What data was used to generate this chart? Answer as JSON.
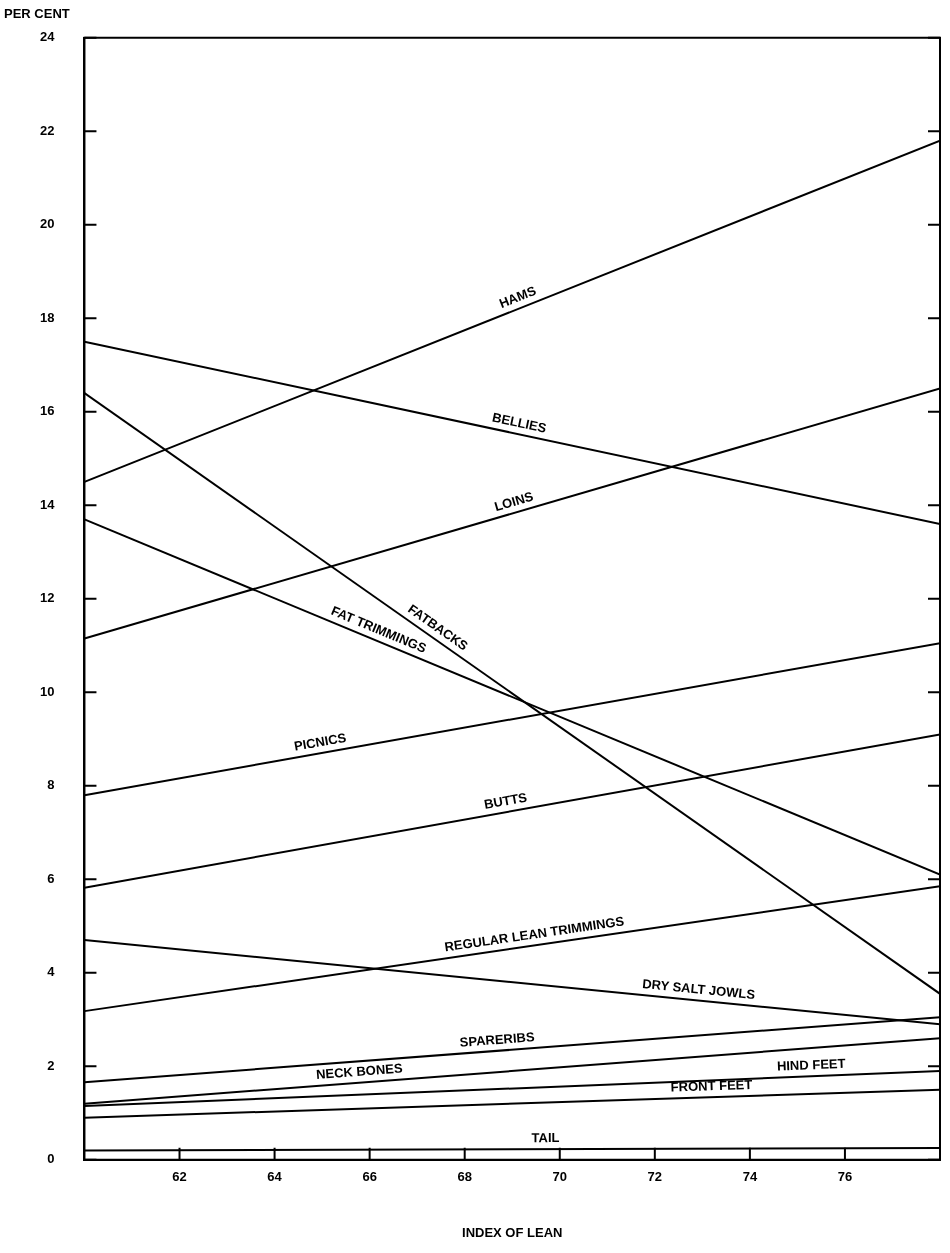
{
  "chart_data": {
    "type": "line",
    "xlabel": "INDEX OF LEAN",
    "ylabel": "PER CENT",
    "xlim": [
      60,
      78
    ],
    "xticks": [
      62,
      64,
      66,
      68,
      70,
      72,
      74,
      76
    ],
    "ylim": [
      0,
      24
    ],
    "yticks": [
      0,
      2,
      4,
      6,
      8,
      10,
      12,
      14,
      16,
      18,
      20,
      22,
      24
    ],
    "grid": false,
    "legend": false,
    "marker": "none",
    "line_style": "solid",
    "x": [
      60,
      78
    ],
    "series": [
      {
        "color": "#000000",
        "values": [
          14.5,
          21.8
        ]
      },
      {
        "color": "#000000",
        "values": [
          17.5,
          13.6
        ]
      },
      {
        "color": "#000000",
        "values": [
          11.15,
          16.5
        ]
      },
      {
        "color": "#000000",
        "values": [
          16.4,
          3.55
        ]
      },
      {
        "color": "#000000",
        "values": [
          13.7,
          6.1
        ]
      },
      {
        "color": "#000000",
        "values": [
          7.8,
          11.05
        ]
      },
      {
        "color": "#000000",
        "values": [
          5.82,
          9.1
        ]
      },
      {
        "color": "#000000",
        "values": [
          3.18,
          5.85
        ]
      },
      {
        "color": "#000000",
        "values": [
          4.7,
          2.9
        ]
      },
      {
        "color": "#000000",
        "values": [
          1.66,
          3.05
        ]
      },
      {
        "color": "#000000",
        "values": [
          1.2,
          2.6
        ]
      },
      {
        "color": "#000000",
        "values": [
          1.15,
          1.9
        ]
      },
      {
        "color": "#000000",
        "values": [
          0.9,
          1.5
        ]
      },
      {
        "color": "#000000",
        "values": [
          0.2,
          0.25
        ]
      }
    ],
    "annotations": [
      {
        "text": "HAMS",
        "x": 69.2,
        "y": 18.23
      },
      {
        "text": "BELLIES",
        "x": 69.1,
        "y": 15.53
      },
      {
        "text": "LOINS",
        "x": 69.1,
        "y": 13.85
      },
      {
        "text": "FATBACKS",
        "x": 67.3,
        "y": 11.19
      },
      {
        "text": "FAT TRIMMINGS",
        "x": 66.1,
        "y": 11.12
      },
      {
        "text": "PICNICS",
        "x": 65.0,
        "y": 8.7
      },
      {
        "text": "BUTTS",
        "x": 68.9,
        "y": 7.44
      },
      {
        "text": "REGULAR LEAN TRIMMINGS",
        "x": 69.5,
        "y": 4.59
      },
      {
        "text": "DRY SALT JOWLS",
        "x": 72.9,
        "y": 3.41
      },
      {
        "text": "SPARERIBS",
        "x": 68.7,
        "y": 2.33
      },
      {
        "text": "NECK BONES",
        "x": 65.8,
        "y": 1.65
      },
      {
        "text": "HIND FEET",
        "x": 75.3,
        "y": 1.79
      },
      {
        "text": "FRONT FEET",
        "x": 73.2,
        "y": 1.34
      },
      {
        "text": "TAIL",
        "x": 69.7,
        "y": 0.23
      }
    ]
  }
}
